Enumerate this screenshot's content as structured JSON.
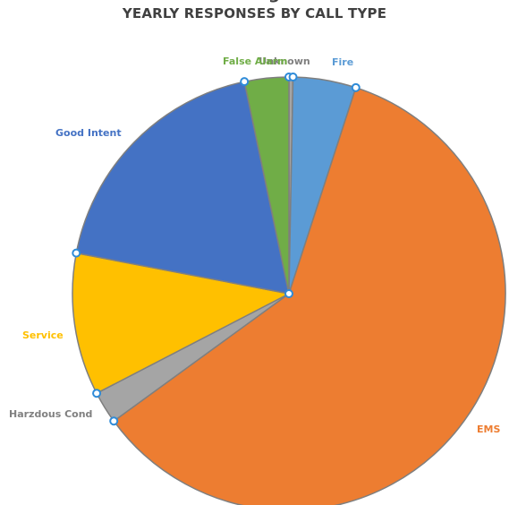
{
  "title_fragment": "g",
  "chart_data": {
    "type": "pie",
    "title": "YEARLY RESPONSES BY CALL TYPE",
    "start_angle_deg": 0,
    "direction": "clockwise",
    "slices": [
      {
        "label": "Unknown",
        "value": 0.3,
        "color": "#a5a5a5",
        "label_color": "#7f7f7f"
      },
      {
        "label": "Fire",
        "value": 4.7,
        "color": "#5b9bd5",
        "label_color": "#5b9bd5"
      },
      {
        "label": "EMS",
        "value": 60.0,
        "color": "#ed7d31",
        "label_color": "#ed7d31"
      },
      {
        "label": "Harzdous Cond",
        "value": 2.4,
        "color": "#a5a5a5",
        "label_color": "#808080"
      },
      {
        "label": "Service",
        "value": 10.6,
        "color": "#ffc000",
        "label_color": "#ffc000"
      },
      {
        "label": "Good Intent",
        "value": 18.7,
        "color": "#4472c4",
        "label_color": "#4472c4"
      },
      {
        "label": "False Alarm",
        "value": 3.3,
        "color": "#70ad47",
        "label_color": "#70ad47"
      }
    ],
    "legend": "none"
  }
}
